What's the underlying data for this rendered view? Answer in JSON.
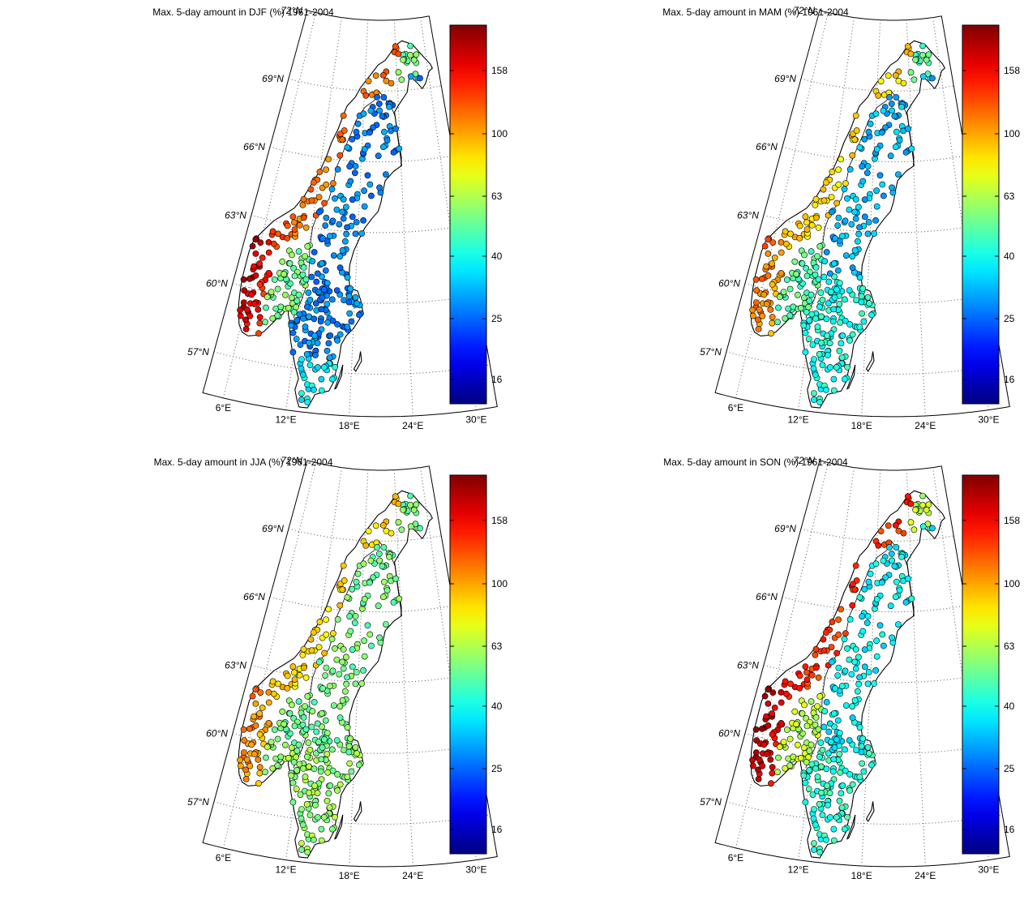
{
  "panels": [
    {
      "id": "djf",
      "title": "Max. 5-day amount in DJF (%) 1961-2004",
      "season": "DJF"
    },
    {
      "id": "mam",
      "title": "Max. 5-day amount in MAM (%) 1961-2004",
      "season": "MAM"
    },
    {
      "id": "jja",
      "title": "Max. 5-day amount in JJA (%) 1961-2004",
      "season": "JJA"
    },
    {
      "id": "son",
      "title": "Max. 5-day amount in SON (%) 1961-2004",
      "season": "SON"
    }
  ],
  "lat_labels": [
    "72°N",
    "69°N",
    "66°N",
    "63°N",
    "60°N",
    "57°N"
  ],
  "lon_labels": [
    "6°E",
    "12°E",
    "18°E",
    "24°E",
    "30°E"
  ],
  "colorbar": {
    "ticks": [
      "158",
      "100",
      "63",
      "40",
      "25",
      "16"
    ],
    "colormap": "jet",
    "colors": [
      "#00008f",
      "#0000ff",
      "#0080ff",
      "#00ffff",
      "#80ff80",
      "#ffff00",
      "#ff8000",
      "#ff0000",
      "#800000"
    ]
  },
  "map_data": {
    "type": "station-scatter",
    "region": "Scandinavia (Norway, Sweden)",
    "projection": "conic",
    "lat_range": [
      55,
      72
    ],
    "lon_range": [
      4,
      32
    ],
    "seasonal_pattern": {
      "DJF": {
        "west_coast_norway": "orange-red (~100-158)",
        "inland_sweden": "blue (~20-30)",
        "southeast_norway": "green-cyan (~40-60)"
      },
      "MAM": {
        "west_coast_norway": "yellow-orange (~63-100)",
        "inland_sweden": "blue-cyan (~25-40)"
      },
      "JJA": {
        "west_coast_norway": "yellow (~63-100)",
        "inland_sweden": "green-cyan (~40-63)"
      },
      "SON": {
        "west_coast_norway": "red-darkred (~130-158)",
        "inland_sweden": "cyan (~30-45)"
      }
    }
  }
}
